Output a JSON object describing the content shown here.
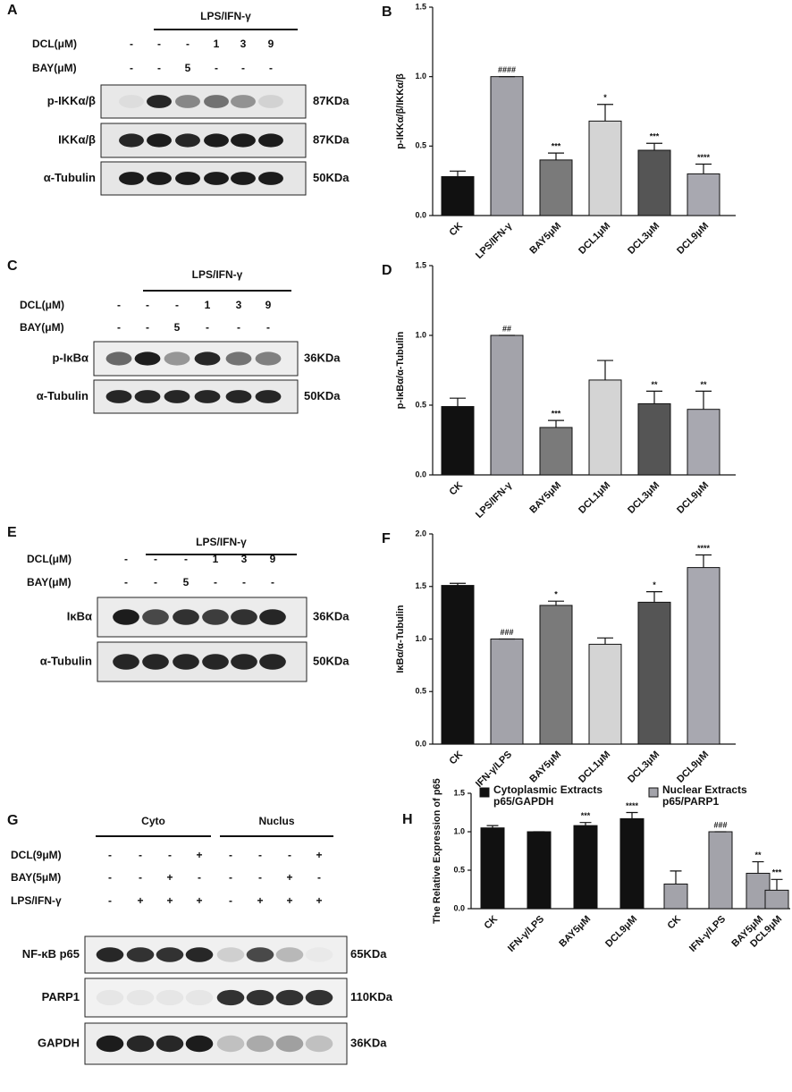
{
  "blots": [
    {
      "panel": "A",
      "treatment": "LPS/IFN-γ",
      "rows": [
        {
          "label": "DCL(μM)",
          "cells": [
            "-",
            "-",
            "-",
            "1",
            "3",
            "9"
          ]
        },
        {
          "label": "BAY(μM)",
          "cells": [
            "-",
            "-",
            "5",
            "-",
            "-",
            "-"
          ]
        }
      ],
      "bands": [
        {
          "label": "p-IKKα/β",
          "size": "87KDa"
        },
        {
          "label": "IKKα/β",
          "size": "87KDa"
        },
        {
          "label": "α-Tubulin",
          "size": "50KDa"
        }
      ]
    },
    {
      "panel": "C",
      "treatment": "LPS/IFN-γ",
      "rows": [
        {
          "label": "DCL(μM)",
          "cells": [
            "-",
            "-",
            "-",
            "1",
            "3",
            "9"
          ]
        },
        {
          "label": "BAY(μM)",
          "cells": [
            "-",
            "-",
            "5",
            "-",
            "-",
            "-"
          ]
        }
      ],
      "bands": [
        {
          "label": "p-IκBα",
          "size": "36KDa"
        },
        {
          "label": "α-Tubulin",
          "size": "50KDa"
        }
      ]
    },
    {
      "panel": "E",
      "treatment": "LPS/IFN-γ",
      "rows": [
        {
          "label": "DCL(μM)",
          "cells": [
            "-",
            "-",
            "-",
            "1",
            "3",
            "9"
          ]
        },
        {
          "label": "BAY(μM)",
          "cells": [
            "-",
            "-",
            "5",
            "-",
            "-",
            "-"
          ]
        }
      ],
      "bands": [
        {
          "label": "IκBα",
          "size": "36KDa"
        },
        {
          "label": "α-Tubulin",
          "size": "50KDa"
        }
      ]
    },
    {
      "panel": "G",
      "groups": [
        "Cyto",
        "Nuclus"
      ],
      "rows": [
        {
          "label": "DCL(9μM)",
          "cells": [
            "-",
            "-",
            "-",
            "+",
            "-",
            "-",
            "-",
            "+"
          ]
        },
        {
          "label": "BAY(5μM)",
          "cells": [
            "-",
            "-",
            "+",
            "-",
            "-",
            "-",
            "+",
            "-"
          ]
        },
        {
          "label": "LPS/IFN-γ",
          "cells": [
            "-",
            "+",
            "+",
            "+",
            "-",
            "+",
            "+",
            "+"
          ]
        }
      ],
      "bands": [
        {
          "label": "NF-κB p65",
          "size": "65KDa"
        },
        {
          "label": "PARP1",
          "size": "110KDa"
        },
        {
          "label": "GAPDH",
          "size": "36KDa"
        }
      ]
    }
  ],
  "chart_data": [
    {
      "type": "bar",
      "panel": "B",
      "ylabel": "p-IKKα/β/IKKα/β",
      "categories": [
        "CK",
        "LPS/IFN-γ",
        "BAY5μM",
        "DCL1μM",
        "DCL3μM",
        "DCL9μM"
      ],
      "values": [
        0.28,
        1.0,
        0.4,
        0.68,
        0.47,
        0.3
      ],
      "errors": [
        0.04,
        0,
        0.05,
        0.12,
        0.05,
        0.07
      ],
      "annotations": [
        null,
        "####",
        "***",
        "*",
        "***",
        "****"
      ],
      "colors": [
        "#111111",
        "#a3a3aa",
        "#7a7a7a",
        "#d4d4d4",
        "#555555",
        "#a8a8b0"
      ],
      "ylim": [
        0,
        1.5
      ],
      "yticks": [
        {
          "value": 0,
          "label": "0.0"
        },
        0.5,
        {
          "value": 1,
          "label": "1.0"
        },
        1.5
      ]
    },
    {
      "type": "bar",
      "panel": "D",
      "ylabel": "p-IκBα/α-Tubulin",
      "categories": [
        "CK",
        "LPS/IFN-γ",
        "BAY5μM",
        "DCL1μM",
        "DCL3μM",
        "DCL9μM"
      ],
      "values": [
        0.49,
        1.0,
        0.34,
        0.68,
        0.51,
        0.47
      ],
      "errors": [
        0.06,
        0,
        0.05,
        0.14,
        0.09,
        0.13
      ],
      "annotations": [
        null,
        "##",
        "***",
        null,
        "**",
        "**"
      ],
      "colors": [
        "#111111",
        "#a3a3aa",
        "#7a7a7a",
        "#d4d4d4",
        "#555555",
        "#a8a8b0"
      ],
      "ylim": [
        0,
        1.5
      ],
      "yticks": [
        {
          "value": 0,
          "label": "0.0"
        },
        0.5,
        {
          "value": 1,
          "label": "1.0"
        },
        1.5
      ]
    },
    {
      "type": "bar",
      "panel": "F",
      "ylabel": "IκBα/α-Tubulin",
      "categories": [
        "CK",
        "IFN-γ/LPS",
        "BAY5μM",
        "DCL1μM",
        "DCL3μM",
        "DCL9μM"
      ],
      "values": [
        1.51,
        1.0,
        1.32,
        0.95,
        1.35,
        1.68
      ],
      "errors": [
        0.02,
        0,
        0.04,
        0.06,
        0.1,
        0.12
      ],
      "annotations": [
        null,
        "###",
        "*",
        null,
        "*",
        "****"
      ],
      "colors": [
        "#111111",
        "#a3a3aa",
        "#7a7a7a",
        "#d4d4d4",
        "#555555",
        "#a8a8b0"
      ],
      "ylim": [
        0,
        2
      ],
      "yticks": [
        {
          "value": 0,
          "label": "0.0"
        },
        0.5,
        {
          "value": 1,
          "label": "1.0"
        },
        1.5,
        {
          "value": 2,
          "label": "2.0"
        }
      ]
    },
    {
      "type": "grouped_bar",
      "panel": "H",
      "ylabel": "The Relative Expression of p65",
      "series": [
        {
          "name": "Cytoplasmic Extracts p65/GAPDH",
          "color": "#111111",
          "categories": [
            "CK",
            "IFN-γ/LPS",
            "BAY5μM",
            "DCL9μM"
          ],
          "values": [
            1.05,
            1.0,
            1.08,
            1.17
          ],
          "errors": [
            0.03,
            0,
            0.04,
            0.08
          ],
          "annotations": [
            null,
            null,
            "***",
            "****"
          ]
        },
        {
          "name": "Nuclear Extracts p65/PARP1",
          "color": "#a3a3aa",
          "categories": [
            "CK",
            "IFN-γ/LPS",
            "BAY5μM",
            "DCL9μM"
          ],
          "values": [
            0.32,
            1.0,
            0.46,
            0.24
          ],
          "errors": [
            0.17,
            0,
            0.15,
            0.14
          ],
          "annotations": [
            null,
            "###",
            "**",
            "***"
          ]
        }
      ],
      "ylim": [
        0,
        1.5
      ],
      "yticks": [
        {
          "value": 0,
          "label": "0.0"
        },
        0.5,
        {
          "value": 1,
          "label": "1.0"
        },
        1.5
      ]
    }
  ]
}
